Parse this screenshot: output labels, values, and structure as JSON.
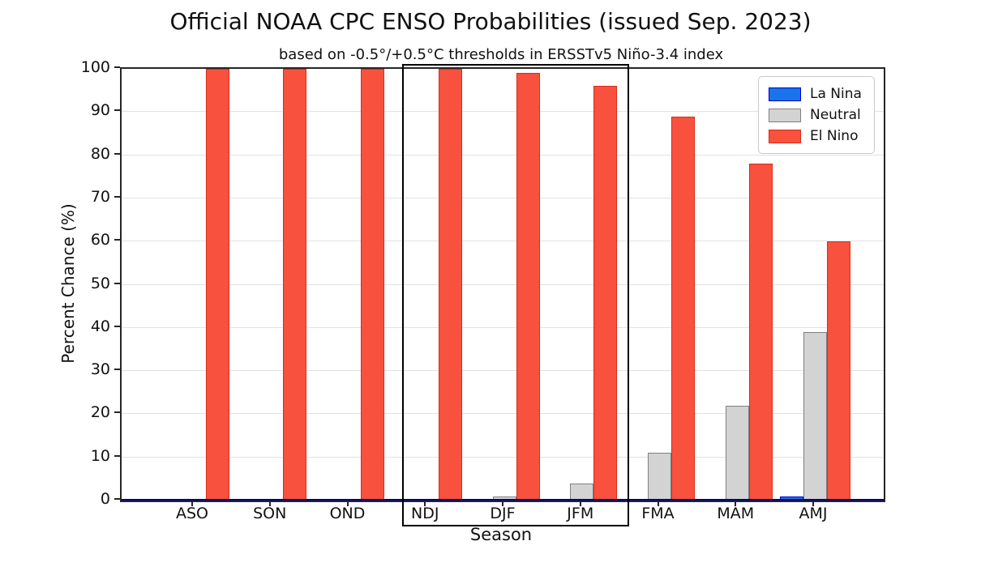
{
  "title": "Official NOAA CPC ENSO Probabilities (issued Sep. 2023)",
  "subtitle": "based on -0.5°/+0.5°C thresholds in ERSSTv5 Niño-3.4 index",
  "chart_data": {
    "type": "bar",
    "categories": [
      "ASO",
      "SON",
      "OND",
      "NDJ",
      "DJF",
      "JFM",
      "FMA",
      "MAM",
      "AMJ"
    ],
    "series": [
      {
        "name": "La Nina",
        "color": "#1874E8",
        "edge_color": "#0000CD",
        "values": [
          0,
          0,
          0,
          0,
          0,
          0,
          0,
          0,
          1
        ]
      },
      {
        "name": "Neutral",
        "color": "#D3D3D3",
        "edge_color": "#808080",
        "values": [
          0,
          0,
          0,
          0,
          1,
          4,
          11,
          22,
          39
        ]
      },
      {
        "name": "El Nino",
        "color": "#F8513E",
        "edge_color": "#DC2B1B",
        "values": [
          100,
          100,
          100,
          100,
          99,
          96,
          89,
          78,
          60
        ]
      }
    ],
    "xlabel": "Season",
    "ylabel": "Percent Chance (%)",
    "ylim": [
      0,
      100
    ],
    "yticks": [
      0,
      10,
      20,
      30,
      40,
      50,
      60,
      70,
      80,
      90,
      100
    ],
    "grid": true,
    "gridline_color": "#e2e2e2",
    "baseline_color": "#000080",
    "legend_position": "upper right",
    "legend_entries": [
      "La Nina",
      "Neutral",
      "El Nino"
    ],
    "highlighted_categories": [
      "NDJ",
      "DJF",
      "JFM"
    ]
  }
}
